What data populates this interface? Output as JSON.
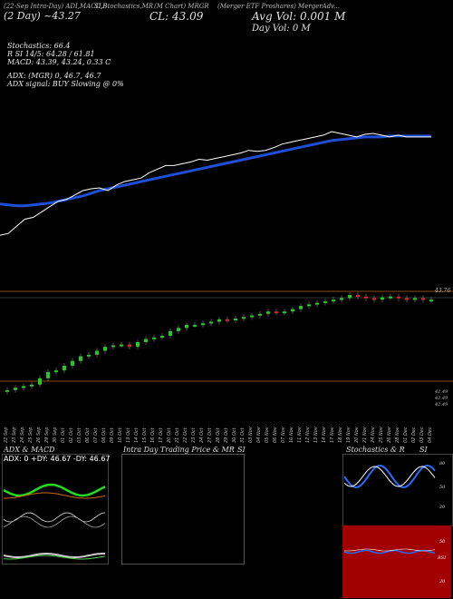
{
  "header": {
    "symbol_line": "(22-Sep Intra-Day) ADI,MACD,B",
    "title_mid": "SI,Stochastics,MR",
    "title_chart": "(M Chart) MRGR",
    "company": "(Merger ETF Proshares) MergerAdv...",
    "day_change": "(2 Day) ~43.27",
    "close": "CL: 43.09",
    "avg_vol": "Avg Vol: 0.001  M",
    "day_vol": "Day Vol: 0   M"
  },
  "indicators": {
    "stochastics": "Stochastics: 66.4",
    "rsi_line": "R                SI 14/5: 64.28  / 61.81",
    "macd": "MACD: 43.39,  43.24,  0.33  C",
    "adx": "ADX:                   (MGR) 0,  46.7,  46.7",
    "adx_signal": "ADX  signal:                    BUY Slowing @ 0%"
  },
  "price_axis": {
    "top_label": "43.76",
    "bottom_labels": [
      "42.49",
      "42.49",
      "42.49"
    ]
  },
  "dates": [
    "22 Sep",
    "23 Sep",
    "24 Sep",
    "25 Sep",
    "26 Sep",
    "29 Sep",
    "30 Sep",
    "01 Oct",
    "02 Oct",
    "03 Oct",
    "06 Oct",
    "07 Oct",
    "08 Oct",
    "09 Oct",
    "10 Oct",
    "13 Oct",
    "14 Oct",
    "15 Oct",
    "16 Oct",
    "17 Oct",
    "20 Oct",
    "21 Oct",
    "22 Oct",
    "23 Oct",
    "24 Oct",
    "27 Oct",
    "28 Oct",
    "29 Oct",
    "30 Oct",
    "31 Oct",
    "03 Nov",
    "04 Nov",
    "05 Nov",
    "06 Nov",
    "07 Nov",
    "10 Nov",
    "11 Nov",
    "12 Nov",
    "13 Nov",
    "14 Nov",
    "17 Nov",
    "18 Nov",
    "19 Nov",
    "20 Nov",
    "21 Nov",
    "24 Nov",
    "25 Nov",
    "26 Nov",
    "28 Nov",
    "01 Dec",
    "02 Dec",
    "03 Dec",
    "04 Dec"
  ],
  "panels": {
    "adx_title": "ADX  & MACD",
    "adx_values": "ADX: 0  +DY: 46.67  -DY: 46.67",
    "intraday_title": "Intra  Day Trading Price  & MR",
    "intraday_si": "SI",
    "stoch_title": "Stochastics & R",
    "stoch_si": "SI",
    "stoch_ticks": [
      "80",
      "50",
      "20"
    ],
    "rsi_ticks": [
      "50",
      "RSI",
      "20"
    ]
  },
  "colors": {
    "ma_line": "#1f4fd8",
    "price_line": "#ffffff",
    "up_candle": "#22cc22",
    "down_candle": "#dd2222",
    "grid_orange": "#8a4a10",
    "rsi_bg": "#a00000",
    "adx_green": "#22dd22",
    "adx_orange": "#cc6a10"
  },
  "chart_data": {
    "type": "line",
    "title": "(M Chart) MRGR",
    "series": [],
    "price_close": [
      42.55,
      42.58,
      42.6,
      42.62,
      42.7,
      42.78,
      42.8,
      42.86,
      42.92,
      42.98,
      43.0,
      43.05,
      43.1,
      43.12,
      43.13,
      43.1,
      43.16,
      43.2,
      43.22,
      43.24,
      43.3,
      43.34,
      43.38,
      43.38,
      43.4,
      43.42,
      43.45,
      43.44,
      43.46,
      43.48,
      43.5,
      43.52,
      43.55,
      43.54,
      43.55,
      43.58,
      43.62,
      43.64,
      43.66,
      43.68,
      43.7,
      43.72,
      43.76,
      43.74,
      43.72,
      43.7,
      43.73,
      43.74,
      43.72,
      43.7,
      43.72,
      43.7,
      43.7
    ],
    "moving_average": [
      42.95,
      42.94,
      42.93,
      42.93,
      42.94,
      42.95,
      42.96,
      42.98,
      43.0,
      43.02,
      43.04,
      43.07,
      43.1,
      43.12,
      43.14,
      43.16,
      43.18,
      43.2,
      43.22,
      43.24,
      43.26,
      43.28,
      43.3,
      43.32,
      43.34,
      43.36,
      43.38,
      43.4,
      43.42,
      43.44,
      43.46,
      43.48,
      43.5,
      43.52,
      43.54,
      43.56,
      43.58,
      43.6,
      43.62,
      43.64,
      43.66,
      43.67,
      43.68,
      43.69,
      43.7,
      43.7,
      43.7,
      43.71,
      43.71,
      43.71,
      43.71,
      43.71,
      43.71
    ],
    "ylim": [
      42.49,
      43.76
    ],
    "grid": false
  }
}
